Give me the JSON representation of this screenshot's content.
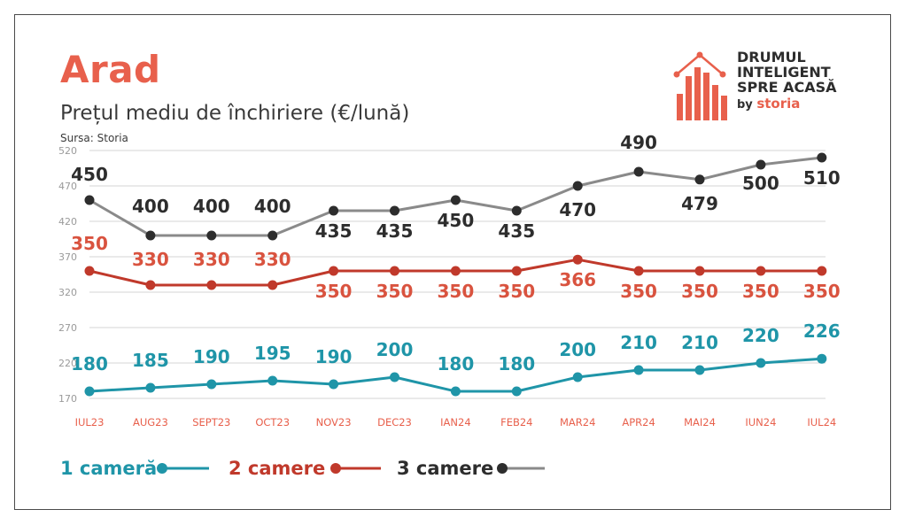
{
  "header": {
    "city": "Arad",
    "subtitle": "Prețul mediu de închiriere (€/lună)",
    "source": "Sursa: Storia"
  },
  "logo": {
    "line1": "DRUMUL",
    "line2": "INTELIGENT",
    "line3": "SPRE ACASĂ",
    "by": "by",
    "brand": "storia"
  },
  "colors": {
    "accent": "#e8604c",
    "one_room": "#1f95a8",
    "two_rooms": "#c0392b",
    "three_rooms_line": "#8a8a8a",
    "three_rooms_marker": "#2d2d2d"
  },
  "chart_data": {
    "type": "line",
    "categories": [
      "IUL23",
      "AUG23",
      "SEPT23",
      "OCT23",
      "NOV23",
      "DEC23",
      "IAN24",
      "FEB24",
      "MAR24",
      "APR24",
      "MAI24",
      "IUN24",
      "IUL24"
    ],
    "yticks": [
      170,
      220,
      270,
      320,
      370,
      420,
      470,
      520
    ],
    "ylim": [
      170,
      520
    ],
    "grid": true,
    "series": [
      {
        "name": "1 cameră",
        "values": [
          180,
          185,
          190,
          195,
          190,
          200,
          180,
          180,
          200,
          210,
          210,
          220,
          226
        ]
      },
      {
        "name": "2 camere",
        "values": [
          350,
          330,
          330,
          330,
          350,
          350,
          350,
          350,
          366,
          350,
          350,
          350,
          350
        ]
      },
      {
        "name": "3 camere",
        "values": [
          450,
          400,
          400,
          400,
          435,
          435,
          450,
          435,
          470,
          490,
          479,
          500,
          510
        ]
      }
    ]
  }
}
